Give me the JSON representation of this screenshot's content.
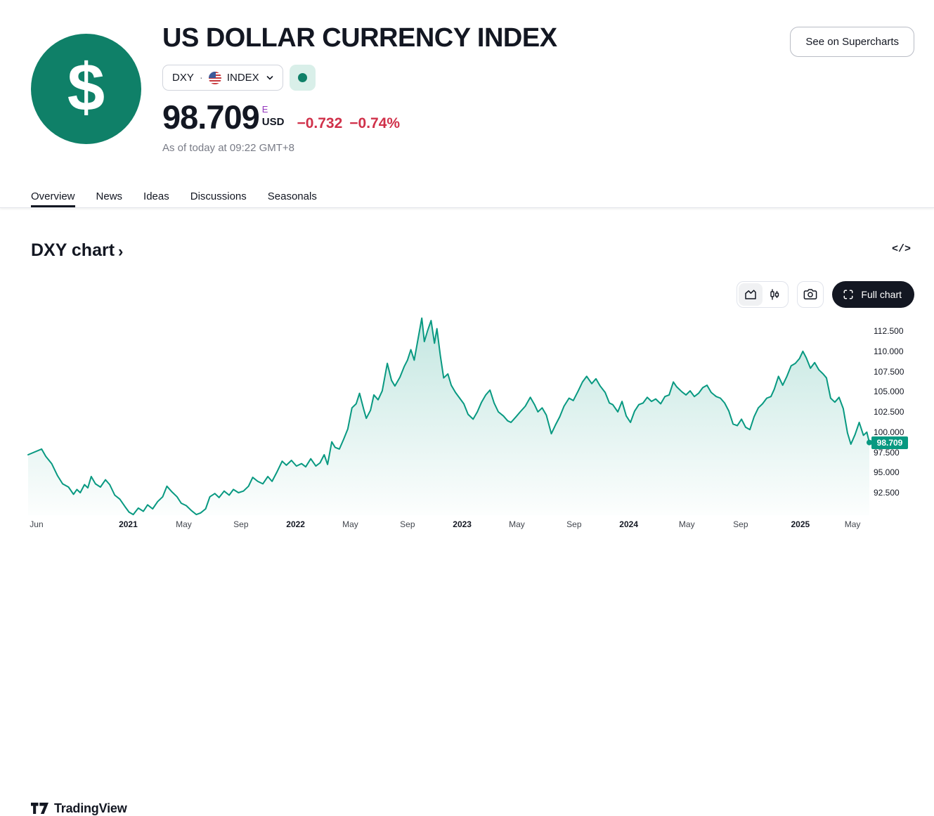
{
  "header": {
    "title": "US DOLLAR CURRENCY INDEX",
    "symbol": {
      "ticker": "DXY",
      "separator": "·",
      "market": "INDEX"
    },
    "supercharts_label": "See on Supercharts",
    "price": {
      "value": "98.709",
      "market_flag": "E",
      "currency": "USD",
      "change": "−0.732",
      "change_percent": "−0.74%"
    },
    "timestamp": "As of today at 09:22 GMT+8"
  },
  "tabs": [
    {
      "label": "Overview",
      "active": true
    },
    {
      "label": "News",
      "active": false
    },
    {
      "label": "Ideas",
      "active": false
    },
    {
      "label": "Discussions",
      "active": false
    },
    {
      "label": "Seasonals",
      "active": false
    }
  ],
  "section": {
    "heading": "DXY chart",
    "chevron": "›",
    "embed_glyph": "</>"
  },
  "toolbar": {
    "full_chart_label": "Full chart"
  },
  "watermark": {
    "brand": "TradingView"
  },
  "colors": {
    "accent_teal": "#089981",
    "logo_teal": "#0f8068",
    "negative_red": "#d0314a",
    "eod_flag_purple": "#9336bd",
    "badge_text": "#ffffff"
  },
  "chart_data": {
    "type": "area",
    "symbol": "DXY",
    "title": "DXY chart",
    "grid": false,
    "legend": false,
    "last_value": 98.709,
    "last_label": "98.709",
    "ylim": [
      89.72,
      114.33
    ],
    "y_ticks": [
      112.5,
      110.0,
      107.5,
      105.0,
      102.5,
      100.0,
      97.5,
      95.0,
      92.5
    ],
    "y_tick_labels": [
      "112.500",
      "110.000",
      "107.500",
      "105.000",
      "102.500",
      "100.000",
      "97.500",
      "95.000",
      "92.500"
    ],
    "x_ticks": [
      {
        "p": 0.01,
        "label": "Jun",
        "major": false
      },
      {
        "p": 0.119,
        "label": "2021",
        "major": true
      },
      {
        "p": 0.185,
        "label": "May",
        "major": false
      },
      {
        "p": 0.253,
        "label": "Sep",
        "major": false
      },
      {
        "p": 0.318,
        "label": "2022",
        "major": true
      },
      {
        "p": 0.383,
        "label": "May",
        "major": false
      },
      {
        "p": 0.451,
        "label": "Sep",
        "major": false
      },
      {
        "p": 0.516,
        "label": "2023",
        "major": true
      },
      {
        "p": 0.581,
        "label": "May",
        "major": false
      },
      {
        "p": 0.649,
        "label": "Sep",
        "major": false
      },
      {
        "p": 0.714,
        "label": "2024",
        "major": true
      },
      {
        "p": 0.783,
        "label": "May",
        "major": false
      },
      {
        "p": 0.847,
        "label": "Sep",
        "major": false
      },
      {
        "p": 0.918,
        "label": "2025",
        "major": true
      },
      {
        "p": 0.98,
        "label": "May",
        "major": false
      }
    ],
    "points": [
      [
        0.0,
        97.2
      ],
      [
        0.016,
        97.9
      ],
      [
        0.021,
        97.0
      ],
      [
        0.028,
        96.1
      ],
      [
        0.035,
        94.6
      ],
      [
        0.041,
        93.6
      ],
      [
        0.048,
        93.2
      ],
      [
        0.054,
        92.3
      ],
      [
        0.058,
        92.9
      ],
      [
        0.062,
        92.5
      ],
      [
        0.067,
        93.5
      ],
      [
        0.071,
        93.1
      ],
      [
        0.075,
        94.5
      ],
      [
        0.08,
        93.6
      ],
      [
        0.086,
        93.2
      ],
      [
        0.092,
        94.1
      ],
      [
        0.097,
        93.5
      ],
      [
        0.103,
        92.2
      ],
      [
        0.109,
        91.7
      ],
      [
        0.115,
        90.8
      ],
      [
        0.12,
        90.1
      ],
      [
        0.125,
        89.8
      ],
      [
        0.131,
        90.6
      ],
      [
        0.137,
        90.2
      ],
      [
        0.142,
        91.0
      ],
      [
        0.148,
        90.5
      ],
      [
        0.154,
        91.4
      ],
      [
        0.16,
        92.0
      ],
      [
        0.165,
        93.3
      ],
      [
        0.171,
        92.6
      ],
      [
        0.177,
        92.0
      ],
      [
        0.182,
        91.2
      ],
      [
        0.188,
        90.9
      ],
      [
        0.194,
        90.3
      ],
      [
        0.2,
        89.8
      ],
      [
        0.205,
        90.0
      ],
      [
        0.211,
        90.5
      ],
      [
        0.216,
        92.0
      ],
      [
        0.222,
        92.4
      ],
      [
        0.227,
        91.9
      ],
      [
        0.233,
        92.7
      ],
      [
        0.239,
        92.2
      ],
      [
        0.244,
        92.9
      ],
      [
        0.25,
        92.5
      ],
      [
        0.256,
        92.7
      ],
      [
        0.262,
        93.3
      ],
      [
        0.267,
        94.4
      ],
      [
        0.273,
        93.9
      ],
      [
        0.279,
        93.6
      ],
      [
        0.285,
        94.5
      ],
      [
        0.29,
        93.9
      ],
      [
        0.296,
        95.1
      ],
      [
        0.302,
        96.4
      ],
      [
        0.307,
        95.9
      ],
      [
        0.313,
        96.5
      ],
      [
        0.319,
        95.8
      ],
      [
        0.325,
        96.1
      ],
      [
        0.33,
        95.7
      ],
      [
        0.336,
        96.7
      ],
      [
        0.342,
        95.8
      ],
      [
        0.347,
        96.2
      ],
      [
        0.352,
        97.2
      ],
      [
        0.356,
        96.0
      ],
      [
        0.361,
        98.8
      ],
      [
        0.365,
        98.1
      ],
      [
        0.37,
        97.9
      ],
      [
        0.375,
        99.1
      ],
      [
        0.38,
        100.4
      ],
      [
        0.385,
        103.0
      ],
      [
        0.39,
        103.5
      ],
      [
        0.394,
        104.8
      ],
      [
        0.399,
        102.8
      ],
      [
        0.402,
        101.7
      ],
      [
        0.407,
        102.7
      ],
      [
        0.411,
        104.6
      ],
      [
        0.416,
        104.0
      ],
      [
        0.421,
        105.1
      ],
      [
        0.427,
        108.5
      ],
      [
        0.432,
        106.4
      ],
      [
        0.436,
        105.7
      ],
      [
        0.442,
        106.8
      ],
      [
        0.447,
        108.1
      ],
      [
        0.451,
        108.9
      ],
      [
        0.455,
        110.2
      ],
      [
        0.459,
        108.9
      ],
      [
        0.464,
        111.8
      ],
      [
        0.468,
        114.1
      ],
      [
        0.471,
        111.2
      ],
      [
        0.475,
        112.6
      ],
      [
        0.479,
        113.8
      ],
      [
        0.483,
        111.0
      ],
      [
        0.486,
        112.8
      ],
      [
        0.49,
        109.5
      ],
      [
        0.494,
        106.7
      ],
      [
        0.499,
        107.2
      ],
      [
        0.503,
        105.8
      ],
      [
        0.508,
        104.9
      ],
      [
        0.513,
        104.2
      ],
      [
        0.518,
        103.5
      ],
      [
        0.523,
        102.2
      ],
      [
        0.529,
        101.6
      ],
      [
        0.534,
        102.5
      ],
      [
        0.539,
        103.7
      ],
      [
        0.544,
        104.6
      ],
      [
        0.549,
        105.2
      ],
      [
        0.554,
        103.6
      ],
      [
        0.559,
        102.5
      ],
      [
        0.565,
        102.0
      ],
      [
        0.57,
        101.4
      ],
      [
        0.574,
        101.2
      ],
      [
        0.58,
        101.9
      ],
      [
        0.585,
        102.5
      ],
      [
        0.591,
        103.2
      ],
      [
        0.597,
        104.3
      ],
      [
        0.602,
        103.4
      ],
      [
        0.606,
        102.5
      ],
      [
        0.611,
        103.0
      ],
      [
        0.616,
        102.1
      ],
      [
        0.622,
        99.8
      ],
      [
        0.627,
        100.9
      ],
      [
        0.632,
        101.9
      ],
      [
        0.637,
        103.2
      ],
      [
        0.643,
        104.2
      ],
      [
        0.648,
        103.9
      ],
      [
        0.654,
        105.1
      ],
      [
        0.659,
        106.2
      ],
      [
        0.664,
        106.9
      ],
      [
        0.67,
        106.0
      ],
      [
        0.675,
        106.6
      ],
      [
        0.68,
        105.7
      ],
      [
        0.686,
        104.9
      ],
      [
        0.691,
        103.6
      ],
      [
        0.695,
        103.4
      ],
      [
        0.701,
        102.5
      ],
      [
        0.706,
        103.8
      ],
      [
        0.711,
        102.0
      ],
      [
        0.716,
        101.2
      ],
      [
        0.721,
        102.6
      ],
      [
        0.726,
        103.4
      ],
      [
        0.731,
        103.6
      ],
      [
        0.736,
        104.3
      ],
      [
        0.741,
        103.8
      ],
      [
        0.746,
        104.1
      ],
      [
        0.752,
        103.5
      ],
      [
        0.757,
        104.4
      ],
      [
        0.762,
        104.6
      ],
      [
        0.767,
        106.2
      ],
      [
        0.771,
        105.6
      ],
      [
        0.777,
        105.0
      ],
      [
        0.782,
        104.6
      ],
      [
        0.787,
        105.1
      ],
      [
        0.792,
        104.4
      ],
      [
        0.797,
        104.8
      ],
      [
        0.802,
        105.5
      ],
      [
        0.807,
        105.8
      ],
      [
        0.812,
        104.9
      ],
      [
        0.818,
        104.4
      ],
      [
        0.823,
        104.2
      ],
      [
        0.828,
        103.6
      ],
      [
        0.833,
        102.6
      ],
      [
        0.838,
        101.0
      ],
      [
        0.843,
        100.8
      ],
      [
        0.848,
        101.6
      ],
      [
        0.853,
        100.6
      ],
      [
        0.858,
        100.3
      ],
      [
        0.863,
        101.9
      ],
      [
        0.868,
        103.0
      ],
      [
        0.873,
        103.5
      ],
      [
        0.878,
        104.2
      ],
      [
        0.883,
        104.4
      ],
      [
        0.887,
        105.3
      ],
      [
        0.892,
        106.9
      ],
      [
        0.897,
        105.8
      ],
      [
        0.902,
        106.9
      ],
      [
        0.907,
        108.2
      ],
      [
        0.912,
        108.5
      ],
      [
        0.917,
        109.1
      ],
      [
        0.921,
        110.0
      ],
      [
        0.925,
        109.2
      ],
      [
        0.93,
        107.9
      ],
      [
        0.935,
        108.6
      ],
      [
        0.94,
        107.7
      ],
      [
        0.945,
        107.2
      ],
      [
        0.949,
        106.7
      ],
      [
        0.954,
        104.2
      ],
      [
        0.959,
        103.7
      ],
      [
        0.964,
        104.3
      ],
      [
        0.969,
        102.9
      ],
      [
        0.974,
        99.9
      ],
      [
        0.978,
        98.5
      ],
      [
        0.983,
        99.7
      ],
      [
        0.988,
        101.2
      ],
      [
        0.993,
        99.6
      ],
      [
        0.997,
        100.0
      ],
      [
        1.0,
        98.709
      ]
    ]
  }
}
